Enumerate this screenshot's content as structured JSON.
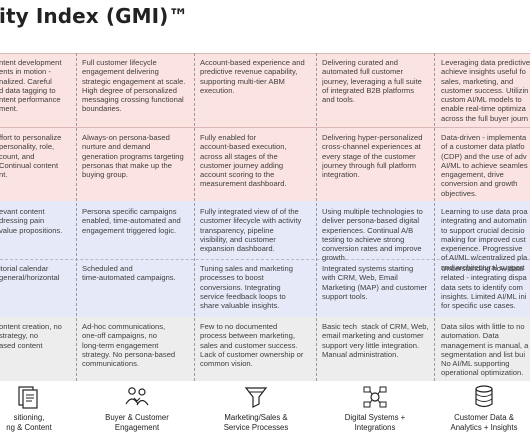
{
  "title": "ity Index (GMI)™",
  "columns": [
    {
      "key": "positioning",
      "label1": "sitioning,",
      "label2": "ng & Content",
      "icon": "document-stack-icon",
      "cells": [
        "ntent development\nents in motion -\nnalized. Careful\nd data tagging to\nntent performance\nment.",
        "ffort to personalize\npersonality, role,\ncount, and\nContinual content\nnt.",
        "evant content\ndressing pain\nvalue propositions.",
        "itorial calendar\ngeneral/horizontal",
        "ontent creation, no\nstrategy, no\nased content"
      ]
    },
    {
      "key": "buyer",
      "label1": "Buyer & Customer",
      "label2": "Engagement",
      "icon": "buyer-customer-icon",
      "cells": [
        "Full customer lifecycle\nengagement delivering\nstrategic engagement at scale.\nHigh degree of personalized\nmessaging crossing functional\nboundaries.",
        "Always-on persona-based\nnurture and demand\ngeneration programs targeting\npersonas that make up the\nbuying group.",
        "Persona specific campaigns\nenabled, time-automated and\nengagement triggered logic.",
        "Scheduled and\ntime-automated campaigns.",
        "Ad-hoc communications,\none-off campaigns, no\nlong-term engagement\nstrategy. No persona-based\ncommunications."
      ]
    },
    {
      "key": "marketing",
      "label1": "Marketing/Sales &",
      "label2": "Service Processes",
      "icon": "funnel-icon",
      "cells": [
        "Account-based experience and\npredictive revenue capability,\nsupporting multi-tier ABM\nexecution.",
        "Fully enabled for\naccount-based execution,\nacross all stages of the\ncustomer journey adding\naccount scoring to the\nmeasurement dashboard.",
        "Fully integrated view of of the\ncustomer lifecycle with activity\ntransparency, pipeline\nvisibility, and customer\nexpansion dashboard.",
        "Tuning sales and marketing\nprocesses to boost\nconversions. Integrating\nservice feedback loops to\nshare valuable insights.",
        "Few to no documented\nprocess between marketing,\nsales and customer success.\nLack of customer ownership or\ncommon vision."
      ]
    },
    {
      "key": "digital",
      "label1": "Digital Systems +",
      "label2": "Integrations",
      "icon": "integrations-icon",
      "cells": [
        "Delivering curated and\nautomated full customer\njourney, leveraging a full suite\nof integrated B2B platforms\nand tools.",
        "Delivering hyper-personalized\ncross-channel experiences at\nevery stage of the customer\njourney through full platform\nintegration.",
        "Using multiple technologies to\ndeliver persona-based digital\nexperiences. Continual A/B\ntesting to achieve strong\nconversion rates and improve\ngrowth.",
        "Integrated systems starting\nwith CRM, Web, Email\nMarketing (MAP) and customer\nsupport tools.",
        "Basic tech  stack of CRM, Web,\nemail marketing and customer\nsupport very little integration.\nManual administration."
      ]
    },
    {
      "key": "data",
      "label1": "Customer Data &",
      "label2": "Analytics + Insights",
      "icon": "database-icon",
      "cells": [
        "Leveraging data predictive\nachieve insights useful fo\nsales, marketing, and\ncustomer success. Utilizin\ncustom AI/ML models to\nenable real-time optimiza\nacross the full buyer journ",
        "Data-driven - implementa\nof a customer data platfo\n(CDP) and the use of adv\nAI/ML to achieve seamles\nengagement, drive\nconversion and growth\nobjectives.",
        "Learning to use data proa\nintegrating and automatin\nto support crucial decisio\nmaking for improved cust\nexperience. Progressive\nof AI/ML w/centralized pla\nand architectural support",
        "Understanding how data\nrelated - integrating dispa\ndata sets to identify com\ninsights. Limited AI/ML ini\nfor specific use cases.",
        "Data silos with little to no\nautomation. Data\nmanagement is manual, a\nsegmentation and list bui\nNo AI/ML supporting\noperational optimization."
      ]
    }
  ]
}
